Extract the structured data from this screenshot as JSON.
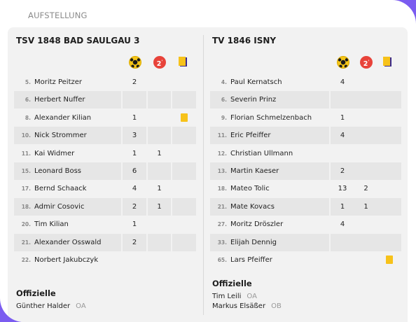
{
  "section_title": "AUFSTELLUNG",
  "icons": {
    "goals": "handball-icon",
    "two_min": "two-minute-penalty-icon",
    "two_min_text": "2",
    "cards": "cards-icon"
  },
  "colors": {
    "background": "#7b5cf0",
    "row_shade": "#e6e6e6",
    "yellow_card": "#f7c21a",
    "penalty_red": "#e8433a"
  },
  "teams": [
    {
      "name": "TSV 1848 BAD SAULGAU 3",
      "players": [
        {
          "num": "5.",
          "name": "Moritz Peitzer",
          "goals": "2",
          "min": "",
          "card": false
        },
        {
          "num": "6.",
          "name": "Herbert Nuffer",
          "goals": "",
          "min": "",
          "card": false
        },
        {
          "num": "8.",
          "name": "Alexander Kilian",
          "goals": "1",
          "min": "",
          "card": true
        },
        {
          "num": "10.",
          "name": "Nick Strommer",
          "goals": "3",
          "min": "",
          "card": false
        },
        {
          "num": "11.",
          "name": "Kai Widmer",
          "goals": "1",
          "min": "1",
          "card": false
        },
        {
          "num": "15.",
          "name": "Leonard Boss",
          "goals": "6",
          "min": "",
          "card": false
        },
        {
          "num": "17.",
          "name": "Bernd Schaack",
          "goals": "4",
          "min": "1",
          "card": false
        },
        {
          "num": "18.",
          "name": "Admir Cosovic",
          "goals": "2",
          "min": "1",
          "card": false
        },
        {
          "num": "20.",
          "name": "Tim Kilian",
          "goals": "1",
          "min": "",
          "card": false
        },
        {
          "num": "21.",
          "name": "Alexander Osswald",
          "goals": "2",
          "min": "",
          "card": false
        },
        {
          "num": "22.",
          "name": "Norbert Jakubczyk",
          "goals": "",
          "min": "",
          "card": false
        }
      ],
      "officials_title": "Offizielle",
      "officials": [
        {
          "name": "Günther Halder",
          "role": "OA"
        }
      ]
    },
    {
      "name": "TV 1846 ISNY",
      "players": [
        {
          "num": "4.",
          "name": "Paul Kernatsch",
          "goals": "4",
          "min": "",
          "card": false
        },
        {
          "num": "6.",
          "name": "Severin Prinz",
          "goals": "",
          "min": "",
          "card": false
        },
        {
          "num": "9.",
          "name": "Florian Schmelzenbach",
          "goals": "1",
          "min": "",
          "card": false
        },
        {
          "num": "11.",
          "name": "Eric Pfeiffer",
          "goals": "4",
          "min": "",
          "card": false
        },
        {
          "num": "12.",
          "name": "Christian Ullmann",
          "goals": "",
          "min": "",
          "card": false
        },
        {
          "num": "13.",
          "name": "Martin Kaeser",
          "goals": "2",
          "min": "",
          "card": false
        },
        {
          "num": "18.",
          "name": "Mateo Tolic",
          "goals": "13",
          "min": "2",
          "card": false
        },
        {
          "num": "21.",
          "name": "Mate Kovacs",
          "goals": "1",
          "min": "1",
          "card": false
        },
        {
          "num": "27.",
          "name": "Moritz Dröszler",
          "goals": "4",
          "min": "",
          "card": false
        },
        {
          "num": "33.",
          "name": "Elijah Dennig",
          "goals": "",
          "min": "",
          "card": false
        },
        {
          "num": "65.",
          "name": "Lars Pfeiffer",
          "goals": "",
          "min": "",
          "card": true
        }
      ],
      "officials_title": "Offizielle",
      "officials": [
        {
          "name": "Tim Leili",
          "role": "OA"
        },
        {
          "name": "Markus Elsäßer",
          "role": "OB"
        }
      ]
    }
  ]
}
